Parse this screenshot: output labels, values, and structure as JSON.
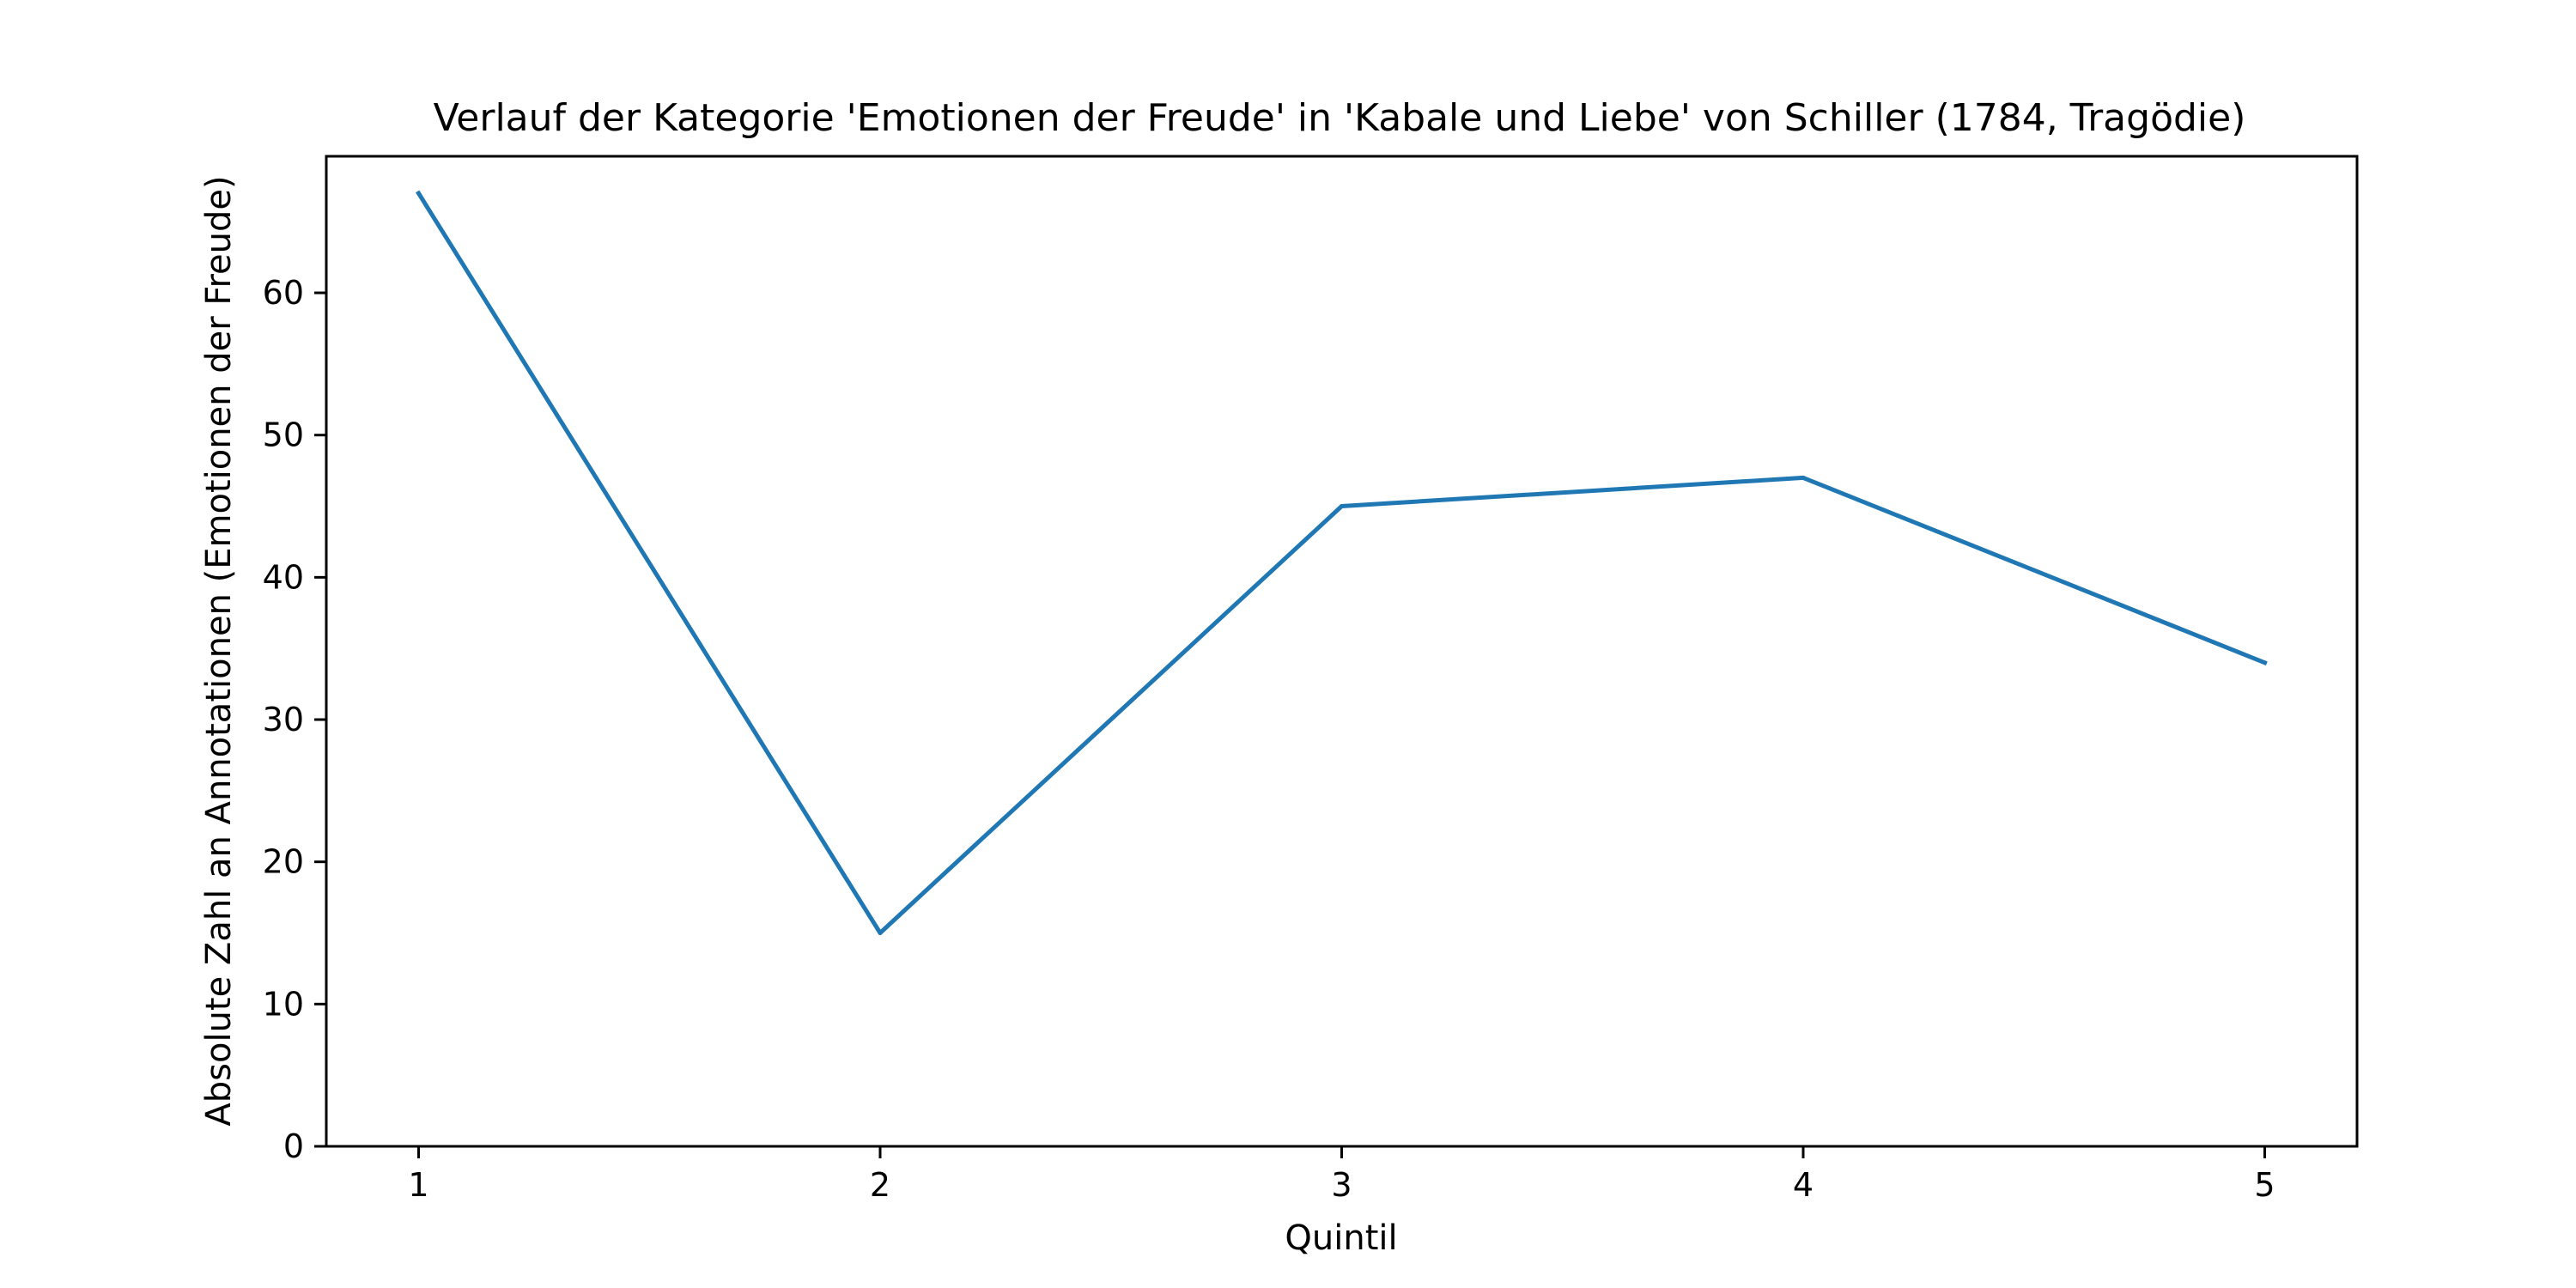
{
  "chart_data": {
    "type": "line",
    "title": "Verlauf der Kategorie 'Emotionen der Freude' in 'Kabale und Liebe' von Schiller (1784, Tragödie)",
    "xlabel": "Quintil",
    "ylabel": "Absolute Zahl an Annotationen (Emotionen der Freude)",
    "x": [
      1,
      2,
      3,
      4,
      5
    ],
    "series": [
      {
        "name": "Emotionen der Freude",
        "values": [
          67,
          15,
          45,
          47,
          34
        ],
        "color": "#1f77b4"
      }
    ],
    "xlim": [
      0.8,
      5.2
    ],
    "ylim": [
      0,
      69.6
    ],
    "xticks": [
      1,
      2,
      3,
      4,
      5
    ],
    "yticks": [
      0,
      10,
      20,
      30,
      40,
      50,
      60
    ],
    "grid": false,
    "legend": "none"
  }
}
